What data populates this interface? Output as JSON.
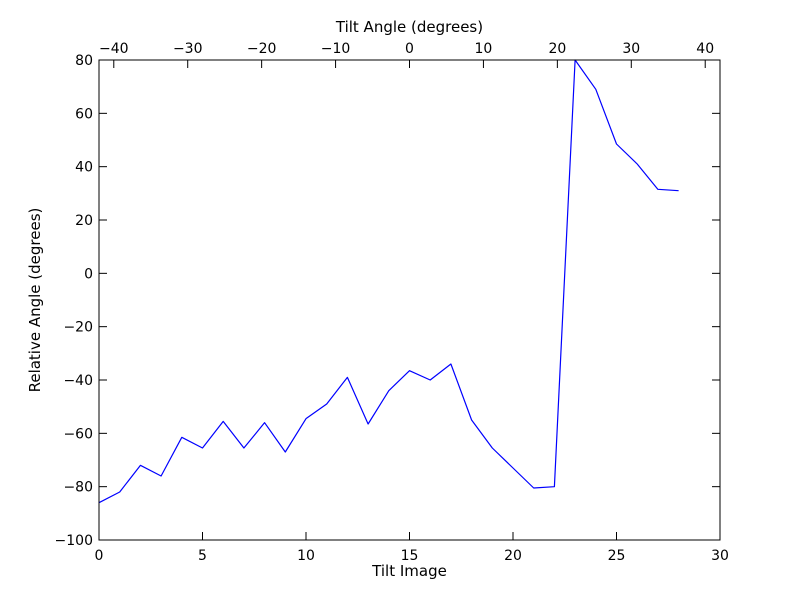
{
  "chart_data": {
    "type": "line",
    "xlabel": "Tilt Image",
    "ylabel": "Relative Angle (degrees)",
    "secondary_xlabel": "Tilt Angle (degrees)",
    "xlim": [
      0,
      30
    ],
    "ylim": [
      -100,
      80
    ],
    "secondary_xlim": [
      -42,
      42
    ],
    "x_ticks": [
      "0",
      "5",
      "10",
      "15",
      "20",
      "25",
      "30"
    ],
    "y_ticks": [
      "−100",
      "−80",
      "−60",
      "−40",
      "−20",
      "0",
      "20",
      "40",
      "60",
      "80"
    ],
    "top_ticks": [
      "−40",
      "−30",
      "−20",
      "−10",
      "0",
      "10",
      "20",
      "30",
      "40"
    ],
    "grid": false,
    "line_color": "#0000ff",
    "series": [
      {
        "x": [
          0,
          1,
          2,
          3,
          4,
          5,
          6,
          7,
          8,
          9,
          10,
          11,
          12,
          13,
          14,
          15,
          16,
          17,
          18,
          19,
          20,
          21,
          22,
          23,
          24,
          25,
          26,
          27,
          28
        ],
        "values": [
          -86,
          -82,
          -72,
          -76,
          -61.5,
          -65.5,
          -55.5,
          -65.5,
          -56,
          -67,
          -54.5,
          -49,
          -39,
          -56.5,
          -44,
          -36.5,
          -40,
          -34,
          -55,
          -65.5,
          -73,
          -80.5,
          -80,
          80,
          69,
          48.5,
          41,
          31.5,
          31
        ]
      }
    ]
  }
}
